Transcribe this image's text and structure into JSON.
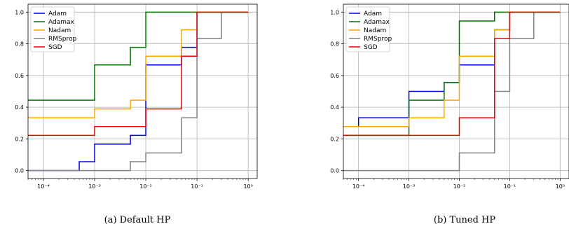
{
  "chart_data": [
    {
      "type": "line",
      "step": "post",
      "caption": "(a)  Default HP",
      "x_scale": "log",
      "xlim": [
        5e-05,
        1.5
      ],
      "ylim": [
        -0.05,
        1.05
      ],
      "x_ticks": [
        0.0001,
        0.001,
        0.01,
        0.1,
        1
      ],
      "x_tick_labels": [
        "10⁻⁴",
        "10⁻³",
        "10⁻²",
        "10⁻¹",
        "10⁰"
      ],
      "y_ticks": [
        0.0,
        0.2,
        0.4,
        0.6,
        0.8,
        1.0
      ],
      "y_tick_labels": [
        "0.0",
        "0.2",
        "0.4",
        "0.6",
        "0.8",
        "1.0"
      ],
      "grid": true,
      "legend_position": "top-left",
      "series": [
        {
          "name": "Adam",
          "color": "#0000ee",
          "x": [
            5e-05,
            0.0005,
            0.001,
            0.005,
            0.01,
            0.05,
            0.1,
            1
          ],
          "y": [
            0.0,
            0.056,
            0.167,
            0.222,
            0.667,
            0.778,
            1.0,
            1.0
          ]
        },
        {
          "name": "Adamax",
          "color": "#007700",
          "x": [
            5e-05,
            0.001,
            0.005,
            0.01,
            1
          ],
          "y": [
            0.444,
            0.667,
            0.778,
            1.0,
            1.0
          ]
        },
        {
          "name": "Nadam",
          "color": "#ffa500",
          "x": [
            5e-05,
            0.001,
            0.005,
            0.01,
            0.05,
            0.1,
            1
          ],
          "y": [
            0.333,
            0.389,
            0.444,
            0.722,
            0.889,
            1.0,
            1.0
          ]
        },
        {
          "name": "RMSprop",
          "color": "#808080",
          "x": [
            5e-05,
            0.005,
            0.01,
            0.05,
            0.1,
            0.3,
            1
          ],
          "y": [
            0.0,
            0.056,
            0.111,
            0.333,
            0.833,
            1.0,
            1.0
          ]
        },
        {
          "name": "SGD",
          "color": "#ee0000",
          "x": [
            5e-05,
            0.001,
            0.01,
            0.05,
            0.1,
            1
          ],
          "y": [
            0.222,
            0.278,
            0.389,
            0.722,
            1.0,
            1.0
          ]
        }
      ]
    },
    {
      "type": "line",
      "step": "post",
      "caption": "(b)  Tuned HP",
      "x_scale": "log",
      "xlim": [
        5e-05,
        1.5
      ],
      "ylim": [
        -0.05,
        1.05
      ],
      "x_ticks": [
        0.0001,
        0.001,
        0.01,
        0.1,
        1
      ],
      "x_tick_labels": [
        "10⁻⁴",
        "10⁻³",
        "10⁻²",
        "10⁻¹",
        "10⁰"
      ],
      "y_ticks": [
        0.0,
        0.2,
        0.4,
        0.6,
        0.8,
        1.0
      ],
      "y_tick_labels": [
        "0.0",
        "0.2",
        "0.4",
        "0.6",
        "0.8",
        "1.0"
      ],
      "grid": true,
      "legend_position": "top-left",
      "series": [
        {
          "name": "Adam",
          "color": "#0000ee",
          "x": [
            5e-05,
            0.0001,
            0.001,
            0.005,
            0.01,
            0.05,
            0.1,
            1
          ],
          "y": [
            0.278,
            0.333,
            0.5,
            0.556,
            0.667,
            0.889,
            1.0,
            1.0
          ]
        },
        {
          "name": "Adamax",
          "color": "#007700",
          "x": [
            5e-05,
            0.001,
            0.005,
            0.01,
            0.05,
            1
          ],
          "y": [
            0.222,
            0.444,
            0.556,
            0.944,
            1.0,
            1.0
          ]
        },
        {
          "name": "Nadam",
          "color": "#ffa500",
          "x": [
            5e-05,
            0.001,
            0.005,
            0.01,
            0.05,
            0.1,
            1
          ],
          "y": [
            0.278,
            0.333,
            0.444,
            0.722,
            0.889,
            1.0,
            1.0
          ]
        },
        {
          "name": "RMSprop",
          "color": "#808080",
          "x": [
            5e-05,
            0.01,
            0.05,
            0.1,
            0.3,
            1
          ],
          "y": [
            0.0,
            0.111,
            0.5,
            0.833,
            1.0,
            1.0
          ]
        },
        {
          "name": "SGD",
          "color": "#ee0000",
          "x": [
            5e-05,
            0.01,
            0.05,
            0.1,
            1
          ],
          "y": [
            0.222,
            0.333,
            0.833,
            1.0,
            1.0
          ]
        }
      ]
    }
  ]
}
